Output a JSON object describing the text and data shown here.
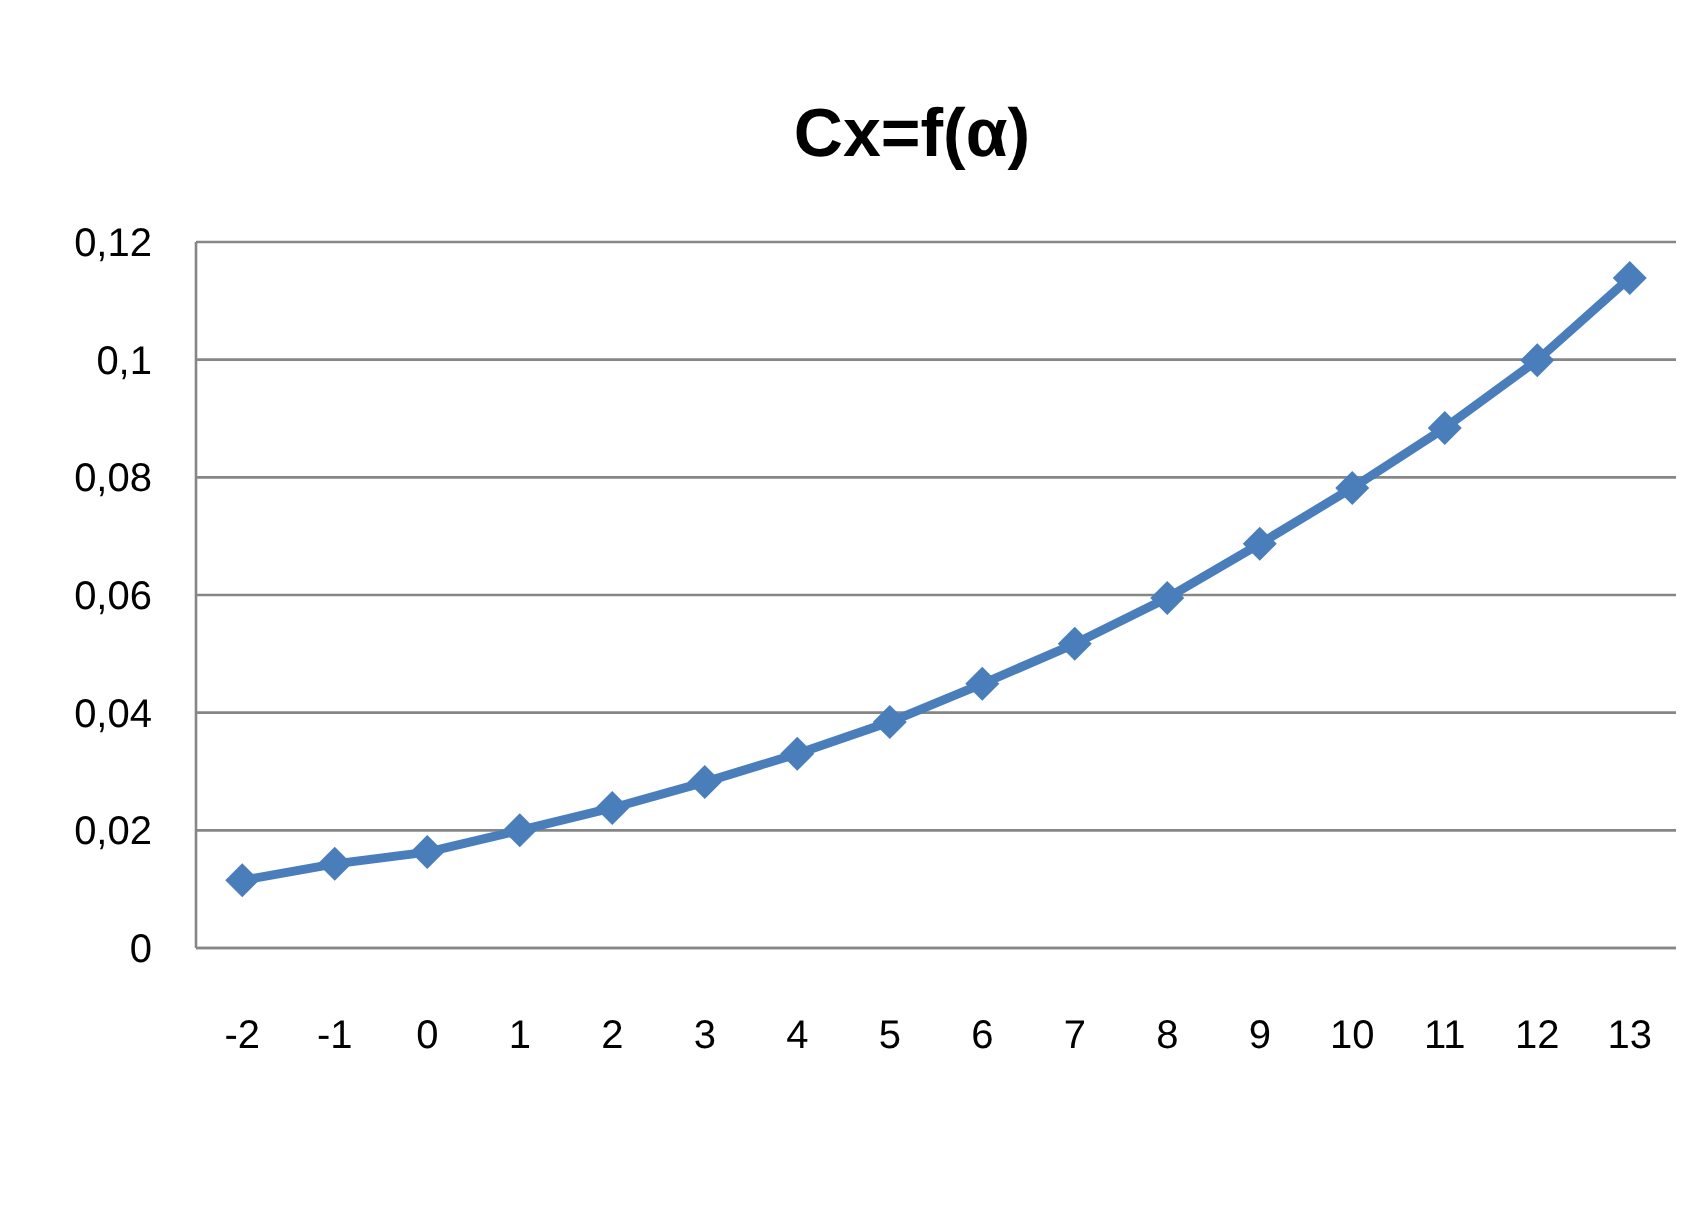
{
  "chart_data": {
    "type": "line",
    "title": "Cx=f(α)",
    "x": [
      -2,
      -1,
      0,
      1,
      2,
      3,
      4,
      5,
      6,
      7,
      8,
      9,
      10,
      11,
      12,
      13
    ],
    "xlim": [
      -2.5,
      13.5
    ],
    "xticks": [
      -2,
      -1,
      0,
      1,
      2,
      3,
      4,
      5,
      6,
      7,
      8,
      9,
      10,
      11,
      12,
      13
    ],
    "series": [
      {
        "color": "#4a7ebb",
        "values": [
          0.0115,
          0.0143,
          0.0163,
          0.02,
          0.0238,
          0.0282,
          0.033,
          0.0384,
          0.0449,
          0.0517,
          0.0595,
          0.0687,
          0.0782,
          0.0884,
          0.0999,
          0.1139
        ]
      }
    ],
    "ylim": [
      0,
      0.12
    ],
    "yticks": [
      0,
      {
        "value": 0.02,
        "label": "0,02"
      },
      {
        "value": 0.04,
        "label": "0,04"
      },
      {
        "value": 0.06,
        "label": "0,06"
      },
      {
        "value": 0.08,
        "label": "0,08"
      },
      {
        "value": 0.1,
        "label": "0,1"
      },
      {
        "value": 0.12,
        "label": "0,12"
      }
    ],
    "grid": "y",
    "marker": "diamond",
    "line_style": "solid"
  }
}
